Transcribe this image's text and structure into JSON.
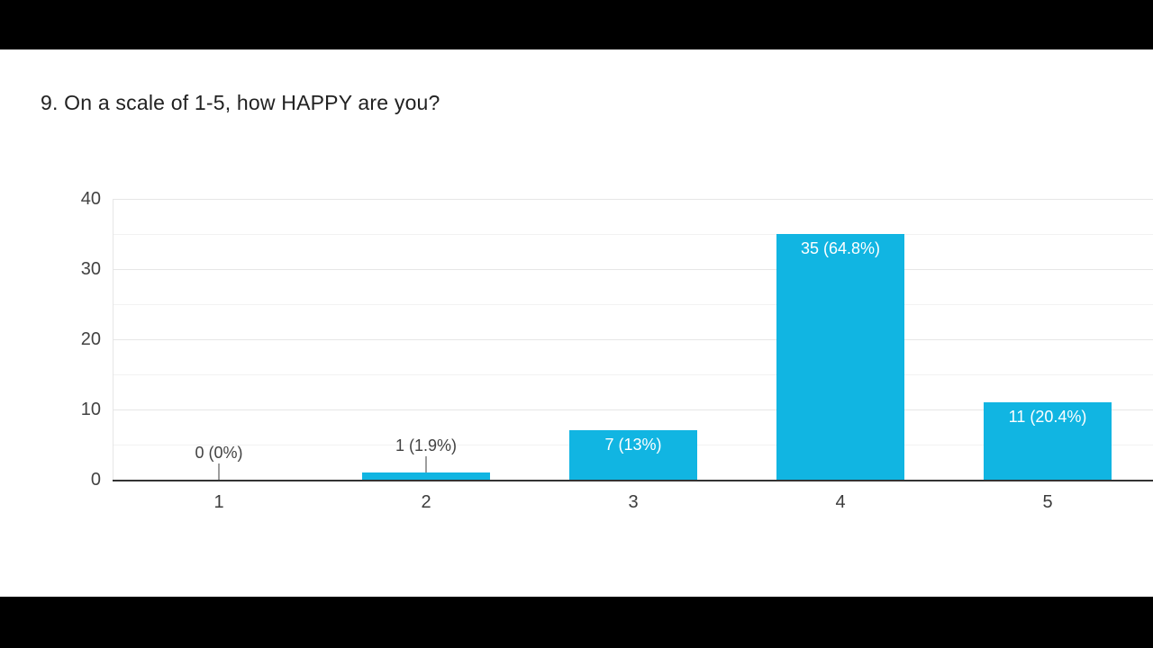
{
  "title": "9. On a scale of 1-5, how HAPPY are you?",
  "chart_data": {
    "type": "bar",
    "title": "9. On a scale of 1-5, how HAPPY are you?",
    "categories": [
      "1",
      "2",
      "3",
      "4",
      "5"
    ],
    "values": [
      0,
      1,
      7,
      35,
      11
    ],
    "data_labels": [
      "0 (0%)",
      "1 (1.9%)",
      "7 (13%)",
      "35 (64.8%)",
      "11 (20.4%)"
    ],
    "label_placement": [
      "outside",
      "outside",
      "inside",
      "inside",
      "inside"
    ],
    "xlabel": "",
    "ylabel": "",
    "ylim": [
      0,
      40
    ],
    "yticks": [
      0,
      10,
      20,
      30,
      40
    ],
    "minor_gridlines": [
      5,
      15,
      25,
      35
    ],
    "grid": true,
    "legend": "none",
    "colors": {
      "bar": "#11b5e2",
      "inside_label": "#ffffff",
      "outside_label": "#424242",
      "tick_label": "#424242",
      "category_label": "#3c3c3c",
      "axis_line": "#333333",
      "major_gridline": "#e6e6e6",
      "minor_gridline": "#f2f2f2",
      "stem": "#9e9e9e",
      "title": "#212121",
      "panel_background": "#ffffff",
      "letterbox": "#000000"
    }
  }
}
